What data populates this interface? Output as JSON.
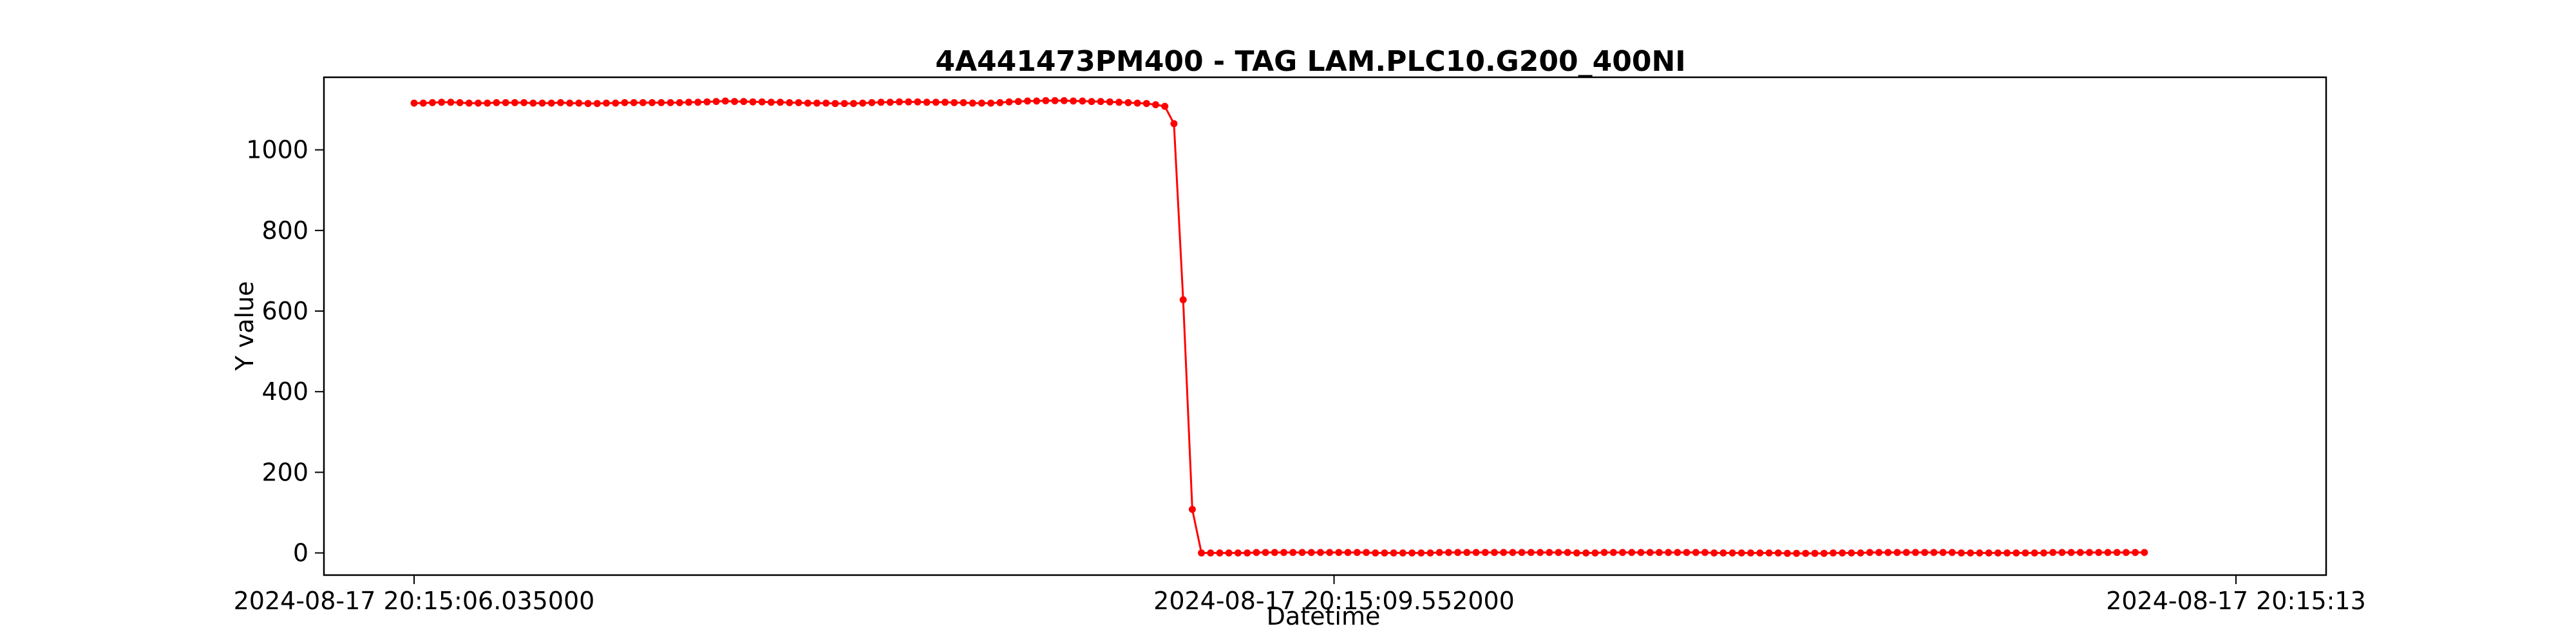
{
  "chart_data": {
    "type": "line",
    "title": "4A441473PM400 - TAG LAM.PLC10.G200_400NI",
    "xlabel": "Datetime",
    "ylabel": "Y value",
    "x_tick_labels": [
      "2024-08-17 20:15:06.035000",
      "2024-08-17 20:15:09.552000",
      "2024-08-17 20:15:13"
    ],
    "x_range": [
      "2024-08-17 20:15:06.035000",
      "2024-08-17 20:15:13"
    ],
    "ylim": [
      -55,
      1180
    ],
    "yticks": [
      0,
      200,
      400,
      600,
      800,
      1000
    ],
    "grid": false,
    "legend": "none",
    "color": "#ff0000",
    "marker": "circle",
    "series": [
      {
        "x": [
          "2024-08-17 20:15:06.035000",
          "2024-08-17 20:15:06.070000",
          "2024-08-17 20:15:06.105000",
          "2024-08-17 20:15:06.140000",
          "2024-08-17 20:15:06.175000",
          "2024-08-17 20:15:06.210000",
          "2024-08-17 20:15:06.245000",
          "2024-08-17 20:15:06.280000",
          "2024-08-17 20:15:06.315000",
          "2024-08-17 20:15:06.350000",
          "2024-08-17 20:15:06.385000",
          "2024-08-17 20:15:06.420000",
          "2024-08-17 20:15:06.455000",
          "2024-08-17 20:15:06.490000",
          "2024-08-17 20:15:06.525000",
          "2024-08-17 20:15:06.560000",
          "2024-08-17 20:15:06.595000",
          "2024-08-17 20:15:06.630000",
          "2024-08-17 20:15:06.665000",
          "2024-08-17 20:15:06.700000",
          "2024-08-17 20:15:06.735000",
          "2024-08-17 20:15:06.770000",
          "2024-08-17 20:15:06.805000",
          "2024-08-17 20:15:06.840000",
          "2024-08-17 20:15:06.875000",
          "2024-08-17 20:15:06.910000",
          "2024-08-17 20:15:06.945000",
          "2024-08-17 20:15:06.980000",
          "2024-08-17 20:15:07.015000",
          "2024-08-17 20:15:07.050000",
          "2024-08-17 20:15:07.085000",
          "2024-08-17 20:15:07.120000",
          "2024-08-17 20:15:07.155000",
          "2024-08-17 20:15:07.190000",
          "2024-08-17 20:15:07.225000",
          "2024-08-17 20:15:07.260000",
          "2024-08-17 20:15:07.295000",
          "2024-08-17 20:15:07.330000",
          "2024-08-17 20:15:07.365000",
          "2024-08-17 20:15:07.400000",
          "2024-08-17 20:15:07.435000",
          "2024-08-17 20:15:07.470000",
          "2024-08-17 20:15:07.505000",
          "2024-08-17 20:15:07.540000",
          "2024-08-17 20:15:07.575000",
          "2024-08-17 20:15:07.610000",
          "2024-08-17 20:15:07.645000",
          "2024-08-17 20:15:07.680000",
          "2024-08-17 20:15:07.715000",
          "2024-08-17 20:15:07.750000",
          "2024-08-17 20:15:07.785000",
          "2024-08-17 20:15:07.820000",
          "2024-08-17 20:15:07.855000",
          "2024-08-17 20:15:07.890000",
          "2024-08-17 20:15:07.925000",
          "2024-08-17 20:15:07.960000",
          "2024-08-17 20:15:07.995000",
          "2024-08-17 20:15:08.030000",
          "2024-08-17 20:15:08.065000",
          "2024-08-17 20:15:08.100000",
          "2024-08-17 20:15:08.135000",
          "2024-08-17 20:15:08.170000",
          "2024-08-17 20:15:08.205000",
          "2024-08-17 20:15:08.240000",
          "2024-08-17 20:15:08.275000",
          "2024-08-17 20:15:08.310000",
          "2024-08-17 20:15:08.345000",
          "2024-08-17 20:15:08.380000",
          "2024-08-17 20:15:08.415000",
          "2024-08-17 20:15:08.450000",
          "2024-08-17 20:15:08.485000",
          "2024-08-17 20:15:08.520000",
          "2024-08-17 20:15:08.555000",
          "2024-08-17 20:15:08.590000",
          "2024-08-17 20:15:08.625000",
          "2024-08-17 20:15:08.660000",
          "2024-08-17 20:15:08.695000",
          "2024-08-17 20:15:08.730000",
          "2024-08-17 20:15:08.765000",
          "2024-08-17 20:15:08.800000",
          "2024-08-17 20:15:08.835000",
          "2024-08-17 20:15:08.870000",
          "2024-08-17 20:15:08.905000",
          "2024-08-17 20:15:08.940000",
          "2024-08-17 20:15:08.975000",
          "2024-08-17 20:15:09.010000",
          "2024-08-17 20:15:09.045000",
          "2024-08-17 20:15:09.080000",
          "2024-08-17 20:15:09.115000",
          "2024-08-17 20:15:09.150000",
          "2024-08-17 20:15:09.185000",
          "2024-08-17 20:15:09.220000",
          "2024-08-17 20:15:09.255000",
          "2024-08-17 20:15:09.290000",
          "2024-08-17 20:15:09.325000",
          "2024-08-17 20:15:09.360000",
          "2024-08-17 20:15:09.395000",
          "2024-08-17 20:15:09.430000",
          "2024-08-17 20:15:09.465000",
          "2024-08-17 20:15:09.500000",
          "2024-08-17 20:15:09.535000",
          "2024-08-17 20:15:09.570000",
          "2024-08-17 20:15:09.605000",
          "2024-08-17 20:15:09.640000",
          "2024-08-17 20:15:09.675000",
          "2024-08-17 20:15:09.710000",
          "2024-08-17 20:15:09.745000",
          "2024-08-17 20:15:09.780000",
          "2024-08-17 20:15:09.815000",
          "2024-08-17 20:15:09.850000",
          "2024-08-17 20:15:09.885000",
          "2024-08-17 20:15:09.920000",
          "2024-08-17 20:15:09.955000",
          "2024-08-17 20:15:09.990000",
          "2024-08-17 20:15:10.025000",
          "2024-08-17 20:15:10.060000",
          "2024-08-17 20:15:10.095000",
          "2024-08-17 20:15:10.130000",
          "2024-08-17 20:15:10.165000",
          "2024-08-17 20:15:10.200000",
          "2024-08-17 20:15:10.235000",
          "2024-08-17 20:15:10.270000",
          "2024-08-17 20:15:10.305000",
          "2024-08-17 20:15:10.340000",
          "2024-08-17 20:15:10.375000",
          "2024-08-17 20:15:10.410000",
          "2024-08-17 20:15:10.445000",
          "2024-08-17 20:15:10.480000",
          "2024-08-17 20:15:10.515000",
          "2024-08-17 20:15:10.550000",
          "2024-08-17 20:15:10.585000",
          "2024-08-17 20:15:10.620000",
          "2024-08-17 20:15:10.655000",
          "2024-08-17 20:15:10.690000",
          "2024-08-17 20:15:10.725000",
          "2024-08-17 20:15:10.760000",
          "2024-08-17 20:15:10.795000",
          "2024-08-17 20:15:10.830000",
          "2024-08-17 20:15:10.865000",
          "2024-08-17 20:15:10.900000",
          "2024-08-17 20:15:10.935000",
          "2024-08-17 20:15:10.970000",
          "2024-08-17 20:15:11.005000",
          "2024-08-17 20:15:11.040000",
          "2024-08-17 20:15:11.075000",
          "2024-08-17 20:15:11.110000",
          "2024-08-17 20:15:11.145000",
          "2024-08-17 20:15:11.180000",
          "2024-08-17 20:15:11.215000",
          "2024-08-17 20:15:11.250000",
          "2024-08-17 20:15:11.285000",
          "2024-08-17 20:15:11.320000",
          "2024-08-17 20:15:11.355000",
          "2024-08-17 20:15:11.390000",
          "2024-08-17 20:15:11.425000",
          "2024-08-17 20:15:11.460000",
          "2024-08-17 20:15:11.495000",
          "2024-08-17 20:15:11.530000",
          "2024-08-17 20:15:11.565000",
          "2024-08-17 20:15:11.600000",
          "2024-08-17 20:15:11.635000",
          "2024-08-17 20:15:11.670000",
          "2024-08-17 20:15:11.705000",
          "2024-08-17 20:15:11.740000",
          "2024-08-17 20:15:11.775000",
          "2024-08-17 20:15:11.810000",
          "2024-08-17 20:15:11.845000",
          "2024-08-17 20:15:11.880000",
          "2024-08-17 20:15:11.915000",
          "2024-08-17 20:15:11.950000",
          "2024-08-17 20:15:11.985000",
          "2024-08-17 20:15:12.020000",
          "2024-08-17 20:15:12.055000",
          "2024-08-17 20:15:12.090000",
          "2024-08-17 20:15:12.125000",
          "2024-08-17 20:15:12.160000",
          "2024-08-17 20:15:12.195000",
          "2024-08-17 20:15:12.230000",
          "2024-08-17 20:15:12.265000",
          "2024-08-17 20:15:12.300000",
          "2024-08-17 20:15:12.335000",
          "2024-08-17 20:15:12.370000",
          "2024-08-17 20:15:12.405000",
          "2024-08-17 20:15:12.440000",
          "2024-08-17 20:15:12.475000",
          "2024-08-17 20:15:12.510000",
          "2024-08-17 20:15:12.545000",
          "2024-08-17 20:15:12.580000",
          "2024-08-17 20:15:12.615000",
          "2024-08-17 20:15:12.650000"
        ],
        "y": [
          1116,
          1116,
          1117,
          1118,
          1118,
          1117,
          1116,
          1116,
          1116,
          1117,
          1117,
          1117,
          1117,
          1116,
          1116,
          1116,
          1117,
          1116,
          1116,
          1115,
          1115,
          1116,
          1116,
          1117,
          1117,
          1117,
          1117,
          1117,
          1117,
          1117,
          1118,
          1118,
          1119,
          1120,
          1121,
          1120,
          1120,
          1119,
          1119,
          1118,
          1118,
          1117,
          1117,
          1116,
          1116,
          1116,
          1115,
          1115,
          1115,
          1116,
          1117,
          1118,
          1118,
          1119,
          1119,
          1119,
          1118,
          1118,
          1118,
          1117,
          1117,
          1116,
          1116,
          1116,
          1117,
          1119,
          1120,
          1121,
          1121,
          1122,
          1122,
          1122,
          1121,
          1121,
          1120,
          1120,
          1119,
          1118,
          1117,
          1116,
          1115,
          1112,
          1108,
          1065,
          628,
          108,
          0,
          0,
          0,
          0,
          0,
          0,
          1,
          1,
          1,
          1,
          1,
          1,
          1,
          1,
          1,
          1,
          1,
          1,
          1,
          0,
          0,
          0,
          0,
          0,
          0,
          0,
          1,
          1,
          1,
          1,
          1,
          1,
          1,
          1,
          1,
          1,
          1,
          1,
          1,
          1,
          1,
          0,
          0,
          0,
          1,
          1,
          1,
          1,
          1,
          1,
          1,
          1,
          1,
          1,
          1,
          1,
          0,
          0,
          0,
          0,
          0,
          0,
          0,
          0,
          -1,
          -1,
          -1,
          -1,
          -1,
          0,
          0,
          0,
          0,
          1,
          1,
          1,
          1,
          1,
          1,
          1,
          1,
          1,
          1,
          0,
          0,
          0,
          0,
          0,
          0,
          0,
          0,
          0,
          0,
          1,
          1,
          1,
          1,
          1,
          1,
          1,
          1,
          1,
          1,
          1
        ]
      }
    ]
  }
}
